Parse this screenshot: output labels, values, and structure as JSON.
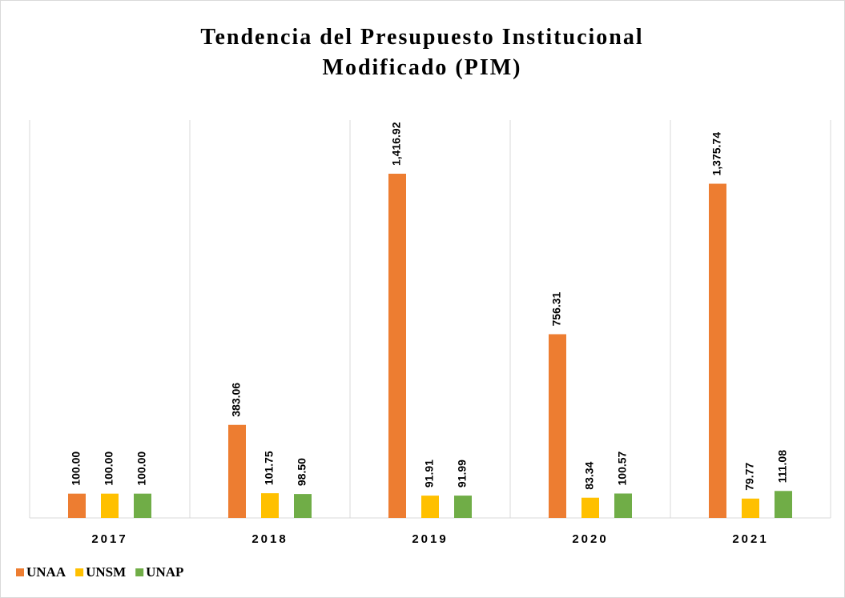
{
  "chart_data": {
    "type": "bar",
    "title": "Tendencia del Presupuesto Institucional Modificado (PIM)",
    "categories": [
      "2017",
      "2018",
      "2019",
      "2020",
      "2021"
    ],
    "series": [
      {
        "name": "UNAA",
        "color": "#ED7D31",
        "values": [
          100,
          383.06,
          1416.92,
          756.31,
          1375.74
        ],
        "value_labels": [
          "100.00",
          "383.06",
          "1,416.92",
          "756.31",
          "1,375.74"
        ]
      },
      {
        "name": "UNSM",
        "color": "#FFC000",
        "values": [
          100,
          101.75,
          91.91,
          83.34,
          79.77
        ],
        "value_labels": [
          "100.00",
          "101.75",
          "91.91",
          "83.34",
          "79.77"
        ]
      },
      {
        "name": "UNAP",
        "color": "#70AD47",
        "values": [
          100,
          98.5,
          91.99,
          100.57,
          111.08
        ],
        "value_labels": [
          "100.00",
          "98.50",
          "91.99",
          "100.57",
          "111.08"
        ]
      }
    ]
  }
}
